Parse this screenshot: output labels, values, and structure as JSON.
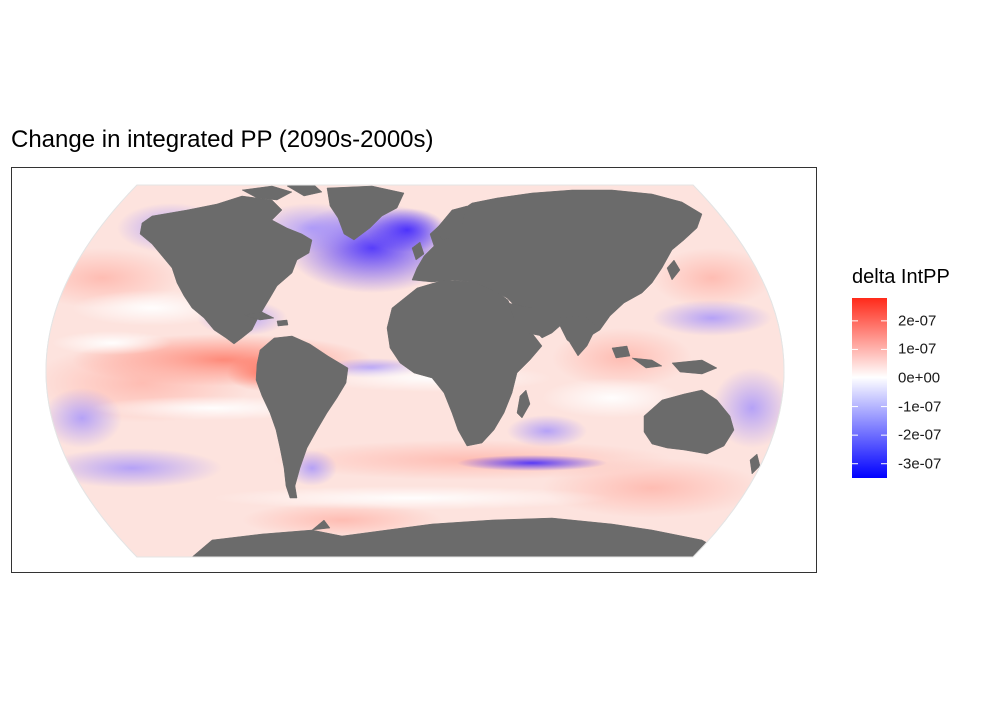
{
  "map": {
    "title": "Change in integrated PP (2090s-2000s)",
    "projection": "robinson",
    "land_color": "#6b6b6b",
    "ocean_background": "#f3f3f3",
    "colors": {
      "low": "#0000ff",
      "mid": "#ffffff",
      "high": "#ff2a1a"
    }
  },
  "legend": {
    "title": "delta IntPP",
    "range": [
      -3.5e-07,
      2.8e-07
    ],
    "ticks": [
      {
        "value": 2e-07,
        "label": "2e-07"
      },
      {
        "value": 1e-07,
        "label": "1e-07"
      },
      {
        "value": 0,
        "label": "0e+00"
      },
      {
        "value": -1e-07,
        "label": "-1e-07"
      },
      {
        "value": -2e-07,
        "label": "-2e-07"
      },
      {
        "value": -3e-07,
        "label": "-3e-07"
      }
    ]
  }
}
